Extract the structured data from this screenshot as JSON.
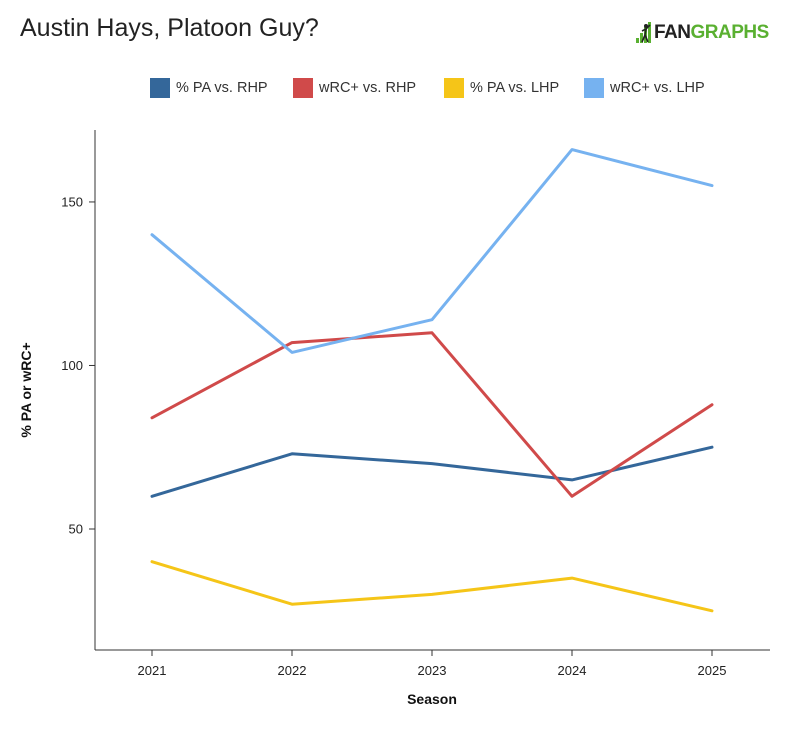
{
  "header": {
    "title": "Austin Hays, Platoon Guy?",
    "logo_fan": "FAN",
    "logo_graphs": "GRAPHS"
  },
  "chart_data": {
    "type": "line",
    "title": "Austin Hays, Platoon Guy?",
    "xlabel": "Season",
    "ylabel": "% PA or wRC+",
    "x": [
      "2021",
      "2022",
      "2023",
      "2024",
      "2025"
    ],
    "ylim": [
      13,
      172
    ],
    "yticks": [
      50,
      100,
      150
    ],
    "grid": false,
    "legend_position": "top-center",
    "series": [
      {
        "name": "% PA vs. RHP",
        "color": "#34679a",
        "values": [
          60,
          73,
          70,
          65,
          75
        ]
      },
      {
        "name": "wRC+ vs. RHP",
        "color": "#d04a4a",
        "values": [
          84,
          107,
          110,
          60,
          88
        ]
      },
      {
        "name": "% PA vs. LHP",
        "color": "#f5c518",
        "values": [
          40,
          27,
          30,
          35,
          25
        ]
      },
      {
        "name": "wRC+ vs. LHP",
        "color": "#76b2f0",
        "values": [
          140,
          104,
          114,
          166,
          155
        ]
      }
    ]
  }
}
